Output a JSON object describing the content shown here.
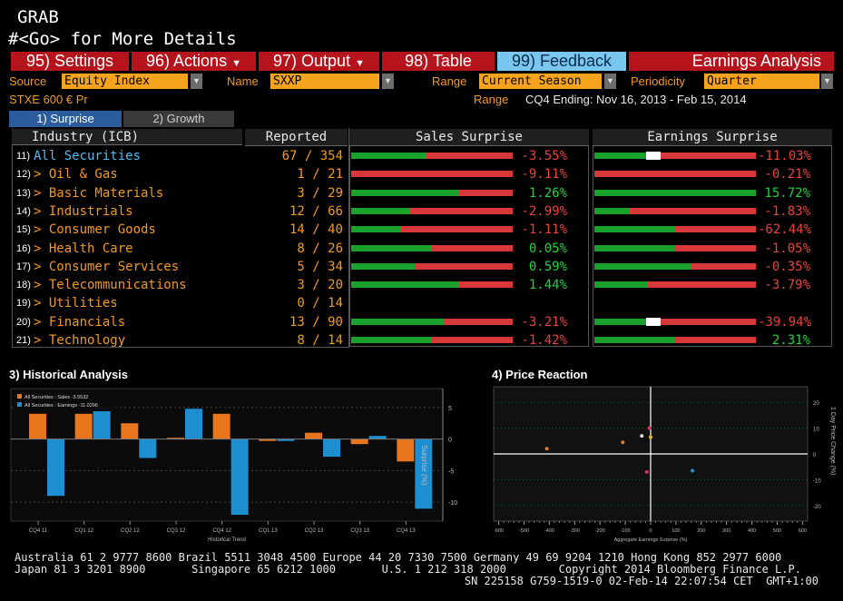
{
  "header": {
    "ticker": "GRAB",
    "subtitle": "#<Go> for More Details"
  },
  "menu": {
    "settings": "95) Settings",
    "actions": "96) Actions",
    "output": "97) Output",
    "table": "98) Table",
    "feedback": "99) Feedback",
    "title": "Earnings Analysis"
  },
  "filters": {
    "source_label": "Source",
    "source_value": "Equity Index",
    "name_label": "Name",
    "name_value": "SXXP",
    "range_label": "Range",
    "range_value": "Current Season",
    "periodicity_label": "Periodicity",
    "periodicity_value": "Quarter",
    "index_name": "STXE 600 € Pr",
    "range_label2": "Range",
    "range_text": "CQ4 Ending: Nov 16, 2013 - Feb 15, 2014"
  },
  "tabs": [
    "1) Surprise",
    "2) Growth"
  ],
  "table": {
    "col_industry": "Industry (ICB)",
    "col_reported": "Reported",
    "col_sales": "Sales Surprise",
    "col_earnings": "Earnings Surprise",
    "rows": [
      {
        "num": "11)",
        "name": "All Securities",
        "reported": "67 / 354",
        "sales": "-3.55%",
        "sales_pos": false,
        "sales_green": 0.46,
        "earn": "-11.03%",
        "earn_pos": false,
        "earn_green": 0.4,
        "earn_white": true
      },
      {
        "num": "12)",
        "name": "> Oil & Gas",
        "reported": "1 / 21",
        "sales": "-9.11%",
        "sales_pos": false,
        "sales_green": 0.0,
        "earn": "-0.21%",
        "earn_pos": false,
        "earn_green": 0.0,
        "earn_white": false
      },
      {
        "num": "13)",
        "name": "> Basic Materials",
        "reported": "3 / 29",
        "sales": "1.26%",
        "sales_pos": true,
        "sales_green": 0.67,
        "earn": "15.72%",
        "earn_pos": true,
        "earn_green": 1.0,
        "earn_white": false
      },
      {
        "num": "14)",
        "name": "> Industrials",
        "reported": "12 / 66",
        "sales": "-2.99%",
        "sales_pos": false,
        "sales_green": 0.36,
        "earn": "-1.83%",
        "earn_pos": false,
        "earn_green": 0.22,
        "earn_white": false
      },
      {
        "num": "15)",
        "name": "> Consumer Goods",
        "reported": "14 / 40",
        "sales": "-1.11%",
        "sales_pos": false,
        "sales_green": 0.31,
        "earn": "-62.44%",
        "earn_pos": false,
        "earn_green": 0.5,
        "earn_white": false
      },
      {
        "num": "16)",
        "name": "> Health Care",
        "reported": "8 / 26",
        "sales": "0.05%",
        "sales_pos": true,
        "sales_green": 0.5,
        "earn": "-1.05%",
        "earn_pos": false,
        "earn_green": 0.5,
        "earn_white": false
      },
      {
        "num": "17)",
        "name": "> Consumer Services",
        "reported": "5 / 34",
        "sales": "0.59%",
        "sales_pos": true,
        "sales_green": 0.4,
        "earn": "-0.35%",
        "earn_pos": false,
        "earn_green": 0.6,
        "earn_white": false
      },
      {
        "num": "18)",
        "name": "> Telecommunications",
        "reported": "3 / 20",
        "sales": "1.44%",
        "sales_pos": true,
        "sales_green": 0.67,
        "earn": "-3.79%",
        "earn_pos": false,
        "earn_green": 0.33,
        "earn_white": false
      },
      {
        "num": "19)",
        "name": "> Utilities",
        "reported": "0 / 14",
        "sales": "",
        "sales_pos": true,
        "sales_green": -1,
        "earn": "",
        "earn_pos": true,
        "earn_green": -1,
        "earn_white": false
      },
      {
        "num": "20)",
        "name": "> Financials",
        "reported": "13 / 90",
        "sales": "-3.21%",
        "sales_pos": false,
        "sales_green": 0.58,
        "earn": "-39.94%",
        "earn_pos": false,
        "earn_green": 0.4,
        "earn_white": true
      },
      {
        "num": "21)",
        "name": "> Technology",
        "reported": "8 / 14",
        "sales": "-1.42%",
        "sales_pos": false,
        "sales_green": 0.5,
        "earn": "2.31%",
        "earn_pos": true,
        "earn_green": 0.5,
        "earn_white": false
      }
    ]
  },
  "historical": {
    "title": "3) Historical Analysis",
    "legend": [
      "All Securities : Sales  -3.5532",
      "All Securities : Earnings -11.0296"
    ],
    "xlabel": "Historical Trend",
    "ylabel": "Surprise (%)"
  },
  "price_reaction": {
    "title": "4) Price Reaction",
    "xlabel": "Aggregate Earnings Surprise (%)",
    "ylabel": "1 Day Price Change (%)"
  },
  "chart_data": [
    {
      "type": "bar",
      "categories": [
        "CQ4 11",
        "CQ1 12",
        "CQ2 12",
        "CQ3 12",
        "CQ4 12",
        "CQ1 13",
        "CQ2 13",
        "CQ3 13",
        "CQ4 13"
      ],
      "series": [
        {
          "name": "All Securities : Sales",
          "values": [
            4.0,
            4.0,
            2.5,
            0.2,
            4.0,
            -0.3,
            1.0,
            -0.8,
            -3.5532
          ]
        },
        {
          "name": "All Securities : Earnings",
          "values": [
            -9.0,
            7.0,
            -3.0,
            4.8,
            -12.0,
            -0.3,
            -2.8,
            0.5,
            -11.0296
          ]
        }
      ],
      "yticks": [
        5,
        0,
        -5,
        -10
      ],
      "ylim": [
        -13,
        8
      ],
      "colors": [
        "#e9751e",
        "#1d8fd0"
      ],
      "xlabel": "Historical Trend",
      "ylabel": "Surprise (%)"
    },
    {
      "type": "scatter",
      "xticks": [
        -600,
        -500,
        -400,
        -300,
        -200,
        -100,
        0,
        100,
        200,
        300,
        400,
        500,
        600
      ],
      "yticks": [
        20,
        10,
        0,
        -10,
        -20
      ],
      "xlim": [
        -620,
        620
      ],
      "ylim": [
        -26,
        26
      ],
      "points": [
        {
          "x": -410,
          "y": 2,
          "color": "#e9751e"
        },
        {
          "x": -110,
          "y": 4.5,
          "color": "#e9751e"
        },
        {
          "x": -35,
          "y": 7,
          "color": "#dddddd"
        },
        {
          "x": -5,
          "y": 10,
          "color": "#d6336c"
        },
        {
          "x": 0,
          "y": 6.5,
          "color": "#e8b51e"
        },
        {
          "x": -15,
          "y": -7,
          "color": "#d6336c"
        },
        {
          "x": 165,
          "y": -6.5,
          "color": "#1d8fd0"
        }
      ],
      "xlabel": "Aggregate Earnings Surprise (%)",
      "ylabel": "1 Day Price Change (%)"
    }
  ],
  "footer": {
    "line1": "Australia 61 2 9777 8600 Brazil 5511 3048 4500 Europe 44 20 7330 7500 Germany 49 69 9204 1210 Hong Kong 852 2977 6000",
    "line2": "Japan 81 3 3201 8900       Singapore 65 6212 1000       U.S. 1 212 318 2000        Copyright 2014 Bloomberg Finance L.P.",
    "line3": "SN 225158 G759-1519-0 02-Feb-14 22:07:54 CET  GMT+1:00"
  }
}
